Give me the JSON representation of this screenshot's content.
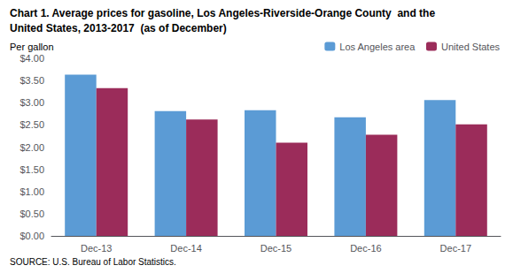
{
  "chart_data": {
    "type": "bar",
    "title": "Chart 1. Average prices for gasoline, Los Angeles-Riverside-Orange County  and the",
    "subtitle": "United States, 2013-2017  (as of December)",
    "ylabel": "Per gallon",
    "annotations": [
      "SOURCE: U.S. Bureau of Labor Statistics."
    ],
    "categories": [
      "Dec-13",
      "Dec-14",
      "Dec-15",
      "Dec-16",
      "Dec-17"
    ],
    "series": [
      {
        "name": "Los Angeles area",
        "color": "#5B9BD5",
        "values": [
          3.63,
          2.81,
          2.83,
          2.67,
          3.06
        ]
      },
      {
        "name": "United States",
        "color": "#9B2C5A",
        "values": [
          3.33,
          2.62,
          2.1,
          2.28,
          2.51
        ]
      }
    ],
    "ylim": [
      0.0,
      4.0
    ],
    "yticks": [
      {
        "value": 0.0,
        "label": "$0.00"
      },
      {
        "value": 0.5,
        "label": "$0.50"
      },
      {
        "value": 1.0,
        "label": "$1.00"
      },
      {
        "value": 1.5,
        "label": "$1.50"
      },
      {
        "value": 2.0,
        "label": "$2.00"
      },
      {
        "value": 2.5,
        "label": "$2.50"
      },
      {
        "value": 3.0,
        "label": "$3.00"
      },
      {
        "value": 3.5,
        "label": "$3.50"
      },
      {
        "value": 4.0,
        "label": "$4.00"
      }
    ],
    "grid": false,
    "legend": "upper right"
  }
}
